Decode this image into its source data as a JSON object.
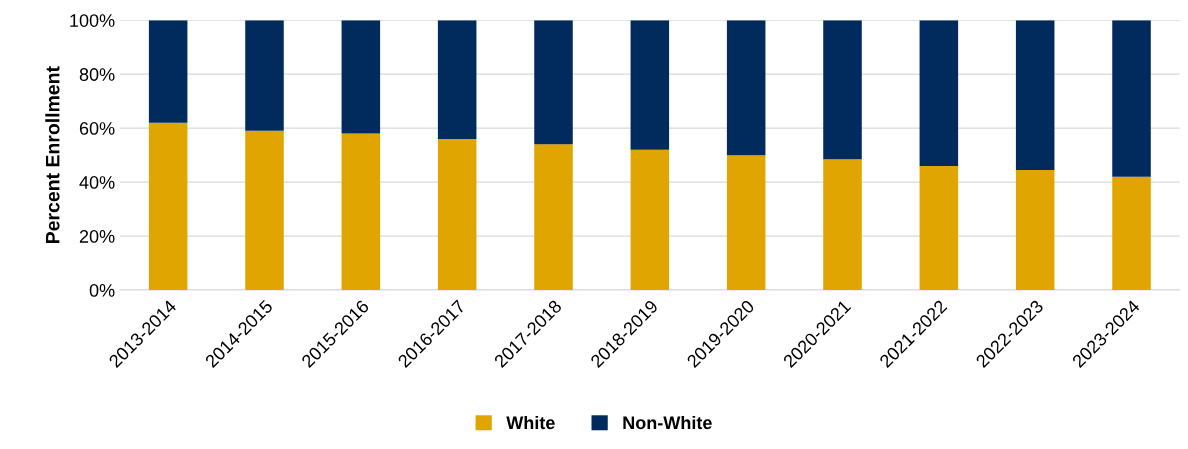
{
  "chart_data": {
    "type": "bar",
    "stacked": true,
    "ylabel": "Percent Enrollment",
    "categories": [
      "2013-2014",
      "2014-2015",
      "2015-2016",
      "2016-2017",
      "2017-2018",
      "2018-2019",
      "2019-2020",
      "2020-2021",
      "2021-2022",
      "2022-2023",
      "2023-2024"
    ],
    "series": [
      {
        "name": "White",
        "color": "#e0a500",
        "values": [
          62,
          59,
          58,
          56,
          54,
          52,
          50,
          48.5,
          46,
          44.5,
          42
        ]
      },
      {
        "name": "Non-White",
        "color": "#002b5c",
        "values": [
          38,
          41,
          42,
          44,
          46,
          48,
          50,
          51.5,
          54,
          55.5,
          58
        ]
      }
    ],
    "ylim": [
      0,
      100
    ],
    "yticks": [
      {
        "value": 0,
        "label": "0%"
      },
      {
        "value": 20,
        "label": "20%"
      },
      {
        "value": 40,
        "label": "40%"
      },
      {
        "value": 60,
        "label": "60%"
      },
      {
        "value": 80,
        "label": "80%"
      },
      {
        "value": 100,
        "label": "100%"
      }
    ],
    "grid": "y",
    "legend": "bottom"
  }
}
